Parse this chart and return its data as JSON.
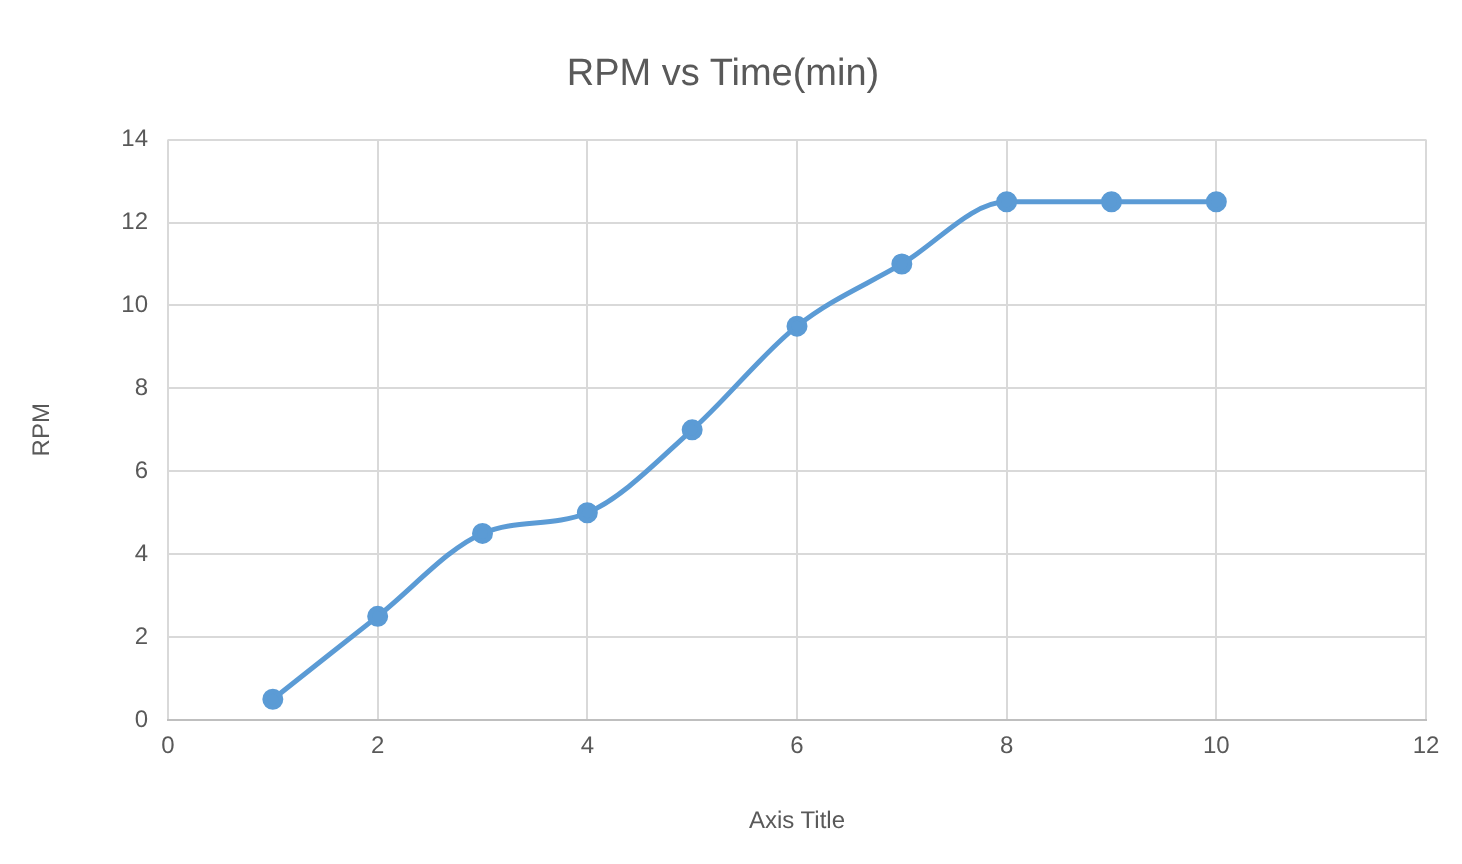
{
  "chart_data": {
    "type": "line",
    "title": "RPM vs Time(min)",
    "xlabel": "Axis Title",
    "ylabel": "RPM",
    "x": [
      1,
      2,
      3,
      4,
      5,
      6,
      7,
      8,
      9,
      10
    ],
    "series": [
      {
        "color": "#5b9bd5",
        "values": [
          0.5,
          2.5,
          4.5,
          5,
          7,
          9.5,
          11,
          12.5,
          12.5,
          12.5
        ]
      }
    ],
    "xlim": [
      0,
      12
    ],
    "ylim": [
      0,
      14
    ],
    "xticks": [
      0,
      2,
      4,
      6,
      8,
      10,
      12
    ],
    "yticks": [
      0,
      2,
      4,
      6,
      8,
      10,
      12,
      14
    ],
    "grid": true,
    "marker": "circle"
  }
}
